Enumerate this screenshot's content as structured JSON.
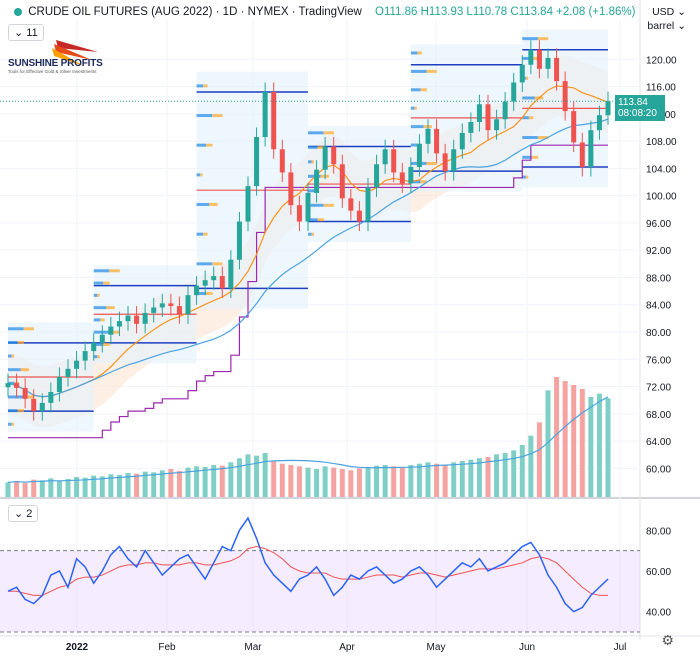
{
  "header": {
    "title": "CRUDE OIL FUTURES (AUG 2022) · 1D · NYMEX · TradingView",
    "ohlc": "O111.86 H113.93 L110.78 C113.84 +2.08 (+1.86%)",
    "indicator_badge": "11",
    "rsi_badge": "2"
  },
  "logo": {
    "name": "SUNSHINE PROFITS",
    "tagline": "Tools for Effective Gold & Silver Investments"
  },
  "price_axis": {
    "currency": "USD",
    "unit": "barrel",
    "last_price": "113.84",
    "countdown": "08:08:20"
  },
  "colors": {
    "up": "#26a69a",
    "down": "#ef5350",
    "ma_fast": "#f7931a",
    "ma_slow": "#4aa3df",
    "stop_line": "#9c27b0",
    "rsi_line": "#2962ff",
    "rsi_signal": "#ef5350",
    "rsi_band": "#e9d5ff",
    "profile_up": "#1e88e5",
    "profile_down": "#ffa726"
  },
  "chart_data": [
    {
      "type": "line",
      "title": "CRUDE OIL FUTURES (AUG 2022)",
      "x_ticks": [
        "2022",
        "Feb",
        "Mar",
        "Apr",
        "May",
        "Jun",
        "Jul"
      ],
      "y_ticks": [
        60,
        64,
        68,
        72,
        76,
        80,
        84,
        88,
        92,
        96,
        100,
        104,
        108,
        112,
        116,
        120
      ],
      "ylim": [
        58,
        124
      ],
      "series": [
        {
          "values": [
            72.5,
            71.8,
            70.2,
            68.4,
            69.6,
            71.2,
            73.4,
            74.6,
            75.8,
            77.2,
            78.4,
            79.6,
            80.8,
            81.6,
            82.4,
            81.2,
            82.8,
            83.6,
            84.2,
            83.8,
            82.6,
            85.4,
            86.8,
            87.6,
            88.2,
            86.4,
            90.6,
            96.2,
            101.4,
            108.6,
            115.2,
            106.8,
            103.4,
            98.6,
            96.2,
            100.4,
            103.8,
            107.2,
            104.6,
            99.6,
            97.8,
            96.2,
            101.2,
            104.6,
            106.8,
            103.4,
            101.8,
            104.2,
            107.6,
            109.8,
            106.2,
            103.6,
            106.8,
            109.2,
            110.8,
            113.4,
            109.6,
            111.2,
            113.8,
            116.6,
            119.2,
            121.4,
            118.6,
            120.2,
            116.8,
            112.4,
            107.8,
            104.2,
            109.6,
            111.8,
            113.84
          ]
        },
        {
          "name": "",
          "values": []
        }
      ]
    },
    {
      "type": "bar",
      "title": "Volume",
      "values": [
        22,
        24,
        21,
        26,
        25,
        28,
        24,
        27,
        30,
        29,
        32,
        31,
        34,
        33,
        36,
        35,
        38,
        37,
        40,
        42,
        39,
        44,
        46,
        45,
        48,
        47,
        52,
        58,
        64,
        62,
        66,
        54,
        50,
        48,
        46,
        44,
        42,
        46,
        44,
        42,
        40,
        43,
        45,
        47,
        48,
        46,
        44,
        48,
        50,
        52,
        50,
        48,
        52,
        54,
        56,
        58,
        60,
        64,
        66,
        70,
        78,
        92,
        112,
        160,
        180,
        174,
        168,
        162,
        150,
        155,
        148
      ]
    },
    {
      "type": "line",
      "title": "RSI",
      "y_ticks": [
        40,
        60,
        80
      ],
      "ylim": [
        30,
        88
      ],
      "band": [
        30,
        70
      ],
      "series": [
        {
          "values": [
            50,
            52,
            46,
            44,
            48,
            58,
            60,
            52,
            66,
            62,
            54,
            60,
            68,
            72,
            66,
            62,
            70,
            64,
            58,
            62,
            66,
            68,
            62,
            56,
            64,
            72,
            70,
            80,
            86,
            76,
            64,
            58,
            54,
            50,
            56,
            58,
            62,
            56,
            48,
            52,
            58,
            56,
            60,
            62,
            58,
            54,
            56,
            60,
            62,
            58,
            52,
            56,
            60,
            64,
            62,
            66,
            60,
            62,
            64,
            68,
            72,
            74,
            68,
            58,
            52,
            44,
            40,
            42,
            48,
            52,
            56
          ]
        },
        {
          "values": [
            50,
            50,
            49,
            48,
            48,
            50,
            52,
            53,
            56,
            57,
            57,
            58,
            60,
            62,
            63,
            63,
            64,
            64,
            63,
            63,
            63,
            64,
            64,
            63,
            63,
            64,
            65,
            67,
            71,
            72,
            71,
            69,
            66,
            62,
            60,
            59,
            59,
            59,
            57,
            56,
            56,
            56,
            57,
            58,
            58,
            58,
            57,
            58,
            59,
            59,
            58,
            57,
            58,
            59,
            60,
            61,
            61,
            61,
            62,
            63,
            64,
            66,
            67,
            66,
            64,
            60,
            56,
            52,
            49,
            48,
            48
          ]
        }
      ]
    }
  ]
}
